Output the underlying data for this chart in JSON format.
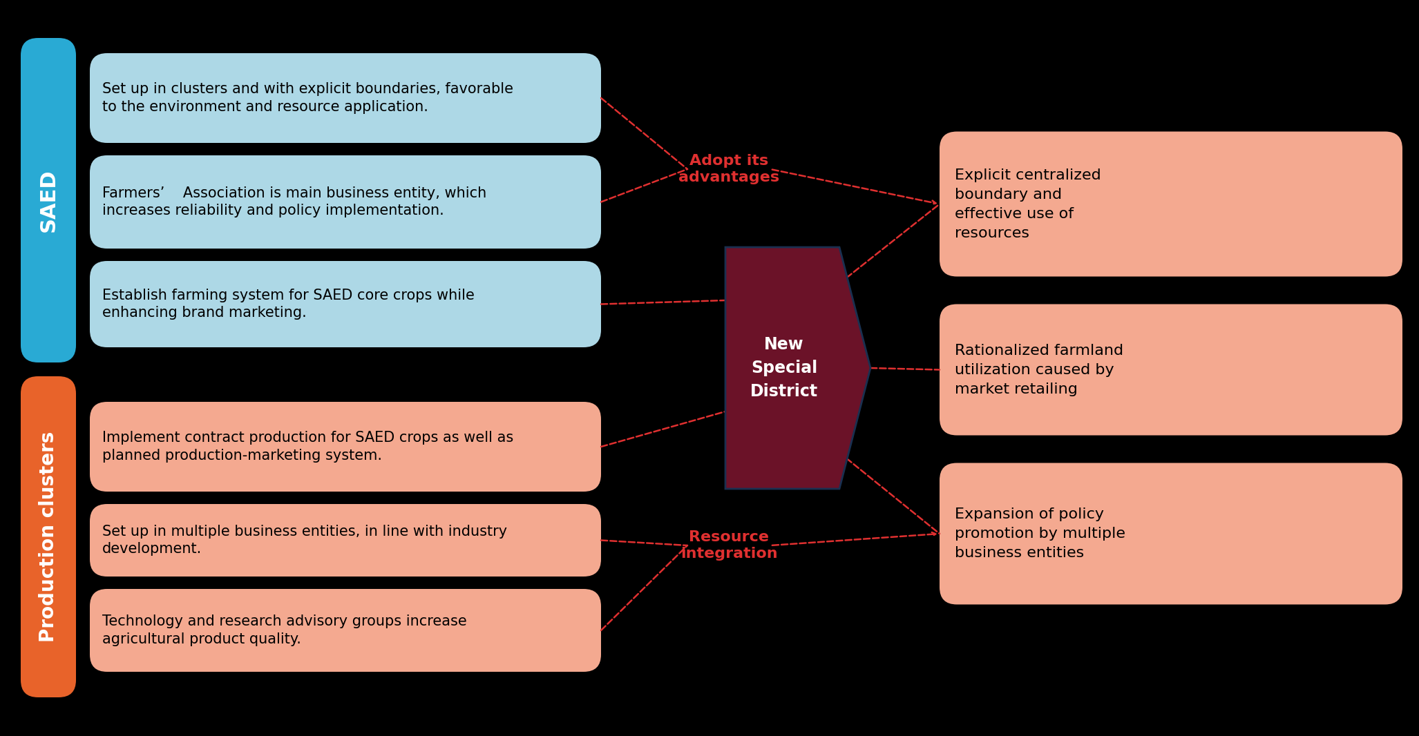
{
  "bg_color": "#000000",
  "saed_bar_color": "#29aad4",
  "production_bar_color": "#e8632a",
  "saed_box_color": "#add8e6",
  "production_box_color": "#f4a990",
  "output_box_color": "#f4a990",
  "arrow_color": "#6b1228",
  "dashed_line_color": "#e03030",
  "label_color": "#e03030",
  "saed_label": "SAED",
  "production_label": "Production clusters",
  "saed_boxes": [
    "Set up in clusters and with explicit boundaries, favorable\nto the environment and resource application.",
    "Farmers’    Association is main business entity, which\nincreases reliability and policy implementation.",
    "Establish farming system for SAED core crops while\nenhancing brand marketing."
  ],
  "production_boxes": [
    "Implement contract production for SAED crops as well as\nplanned production-marketing system.",
    "Set up in multiple business entities, in line with industry\ndevelopment.",
    "Technology and research advisory groups increase\nagricultural product quality."
  ],
  "center_label": "New\nSpecial\nDistrict",
  "adopt_label": "Adopt its\nadvantages",
  "resource_label": "Resource\nintegration",
  "output_boxes": [
    "Explicit centralized\nboundary and\neffective use of\nresources",
    "Rationalized farmland\nutilization caused by\nmarket retailing",
    "Expansion of policy\npromotion by multiple\nbusiness entities"
  ]
}
